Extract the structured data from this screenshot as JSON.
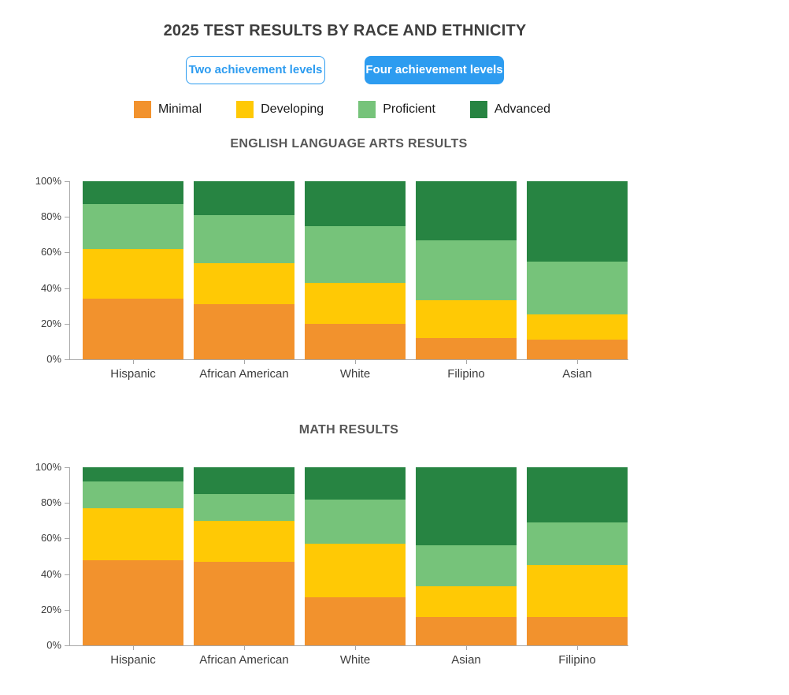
{
  "header": {
    "title": "2025 TEST RESULTS BY RACE AND ETHNICITY",
    "buttons": [
      {
        "label": "Two achievement levels",
        "active": false
      },
      {
        "label": "Four achievement levels",
        "active": true
      }
    ]
  },
  "colors": {
    "accent_blue": "#2d9cf0",
    "minimal": "#f2922d",
    "developing": "#ffc905",
    "proficient": "#76c37a",
    "advanced": "#278442",
    "axis": "#a8a8a8"
  },
  "legend": {
    "items": [
      {
        "label": "Minimal",
        "color": "#f2922d"
      },
      {
        "label": "Developing",
        "color": "#ffc905"
      },
      {
        "label": "Proficient",
        "color": "#76c37a"
      },
      {
        "label": "Advanced",
        "color": "#278442"
      }
    ]
  },
  "chart_data": [
    {
      "type": "bar",
      "subtype": "stacked-100-percent",
      "title": "ENGLISH LANGUAGE ARTS RESULTS",
      "categories": [
        "Hispanic",
        "African American",
        "White",
        "Filipino",
        "Asian"
      ],
      "series": [
        {
          "name": "Minimal",
          "color": "#f2922d",
          "values": [
            34,
            31,
            20,
            12,
            11
          ]
        },
        {
          "name": "Developing",
          "color": "#ffc905",
          "values": [
            28,
            23,
            23,
            21,
            14
          ]
        },
        {
          "name": "Proficient",
          "color": "#76c37a",
          "values": [
            25,
            27,
            32,
            34,
            30
          ]
        },
        {
          "name": "Advanced",
          "color": "#278442",
          "values": [
            13,
            19,
            25,
            33,
            45
          ]
        }
      ],
      "xlabel": "",
      "ylabel": "",
      "ylim": [
        0,
        100
      ],
      "yticks": [
        "0%",
        "20%",
        "40%",
        "60%",
        "80%",
        "100%"
      ],
      "grid": false,
      "legend_position": "top-shared"
    },
    {
      "type": "bar",
      "subtype": "stacked-100-percent",
      "title": "MATH RESULTS",
      "categories": [
        "Hispanic",
        "African American",
        "White",
        "Asian",
        "Filipino"
      ],
      "series": [
        {
          "name": "Minimal",
          "color": "#f2922d",
          "values": [
            48,
            47,
            27,
            16,
            16
          ]
        },
        {
          "name": "Developing",
          "color": "#ffc905",
          "values": [
            29,
            23,
            30,
            17,
            29
          ]
        },
        {
          "name": "Proficient",
          "color": "#76c37a",
          "values": [
            15,
            15,
            25,
            23,
            24
          ]
        },
        {
          "name": "Advanced",
          "color": "#278442",
          "values": [
            8,
            15,
            18,
            44,
            31
          ]
        }
      ],
      "xlabel": "",
      "ylabel": "",
      "ylim": [
        0,
        100
      ],
      "yticks": [
        "0%",
        "20%",
        "40%",
        "60%",
        "80%",
        "100%"
      ],
      "grid": false,
      "legend_position": "top-shared"
    }
  ]
}
